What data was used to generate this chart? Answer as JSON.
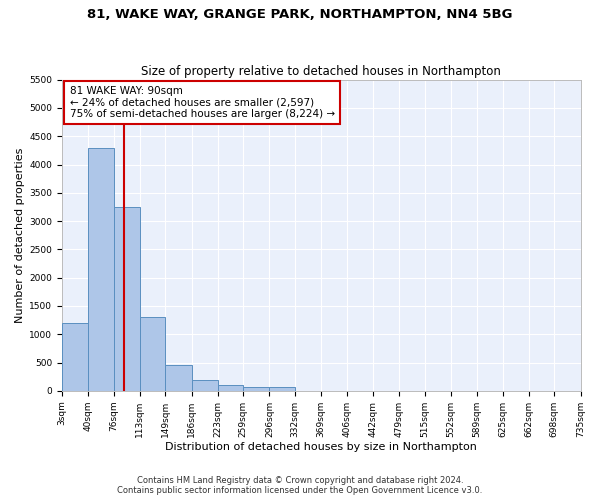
{
  "title_line1": "81, WAKE WAY, GRANGE PARK, NORTHAMPTON, NN4 5BG",
  "title_line2": "Size of property relative to detached houses in Northampton",
  "xlabel": "Distribution of detached houses by size in Northampton",
  "ylabel": "Number of detached properties",
  "footer_line1": "Contains HM Land Registry data © Crown copyright and database right 2024.",
  "footer_line2": "Contains public sector information licensed under the Open Government Licence v3.0.",
  "property_label": "81 WAKE WAY: 90sqm",
  "annotation_line1": "← 24% of detached houses are smaller (2,597)",
  "annotation_line2": "75% of semi-detached houses are larger (8,224) →",
  "property_size": 90,
  "bin_edges": [
    3,
    40,
    76,
    113,
    149,
    186,
    223,
    259,
    296,
    332,
    369,
    406,
    442,
    479,
    515,
    552,
    589,
    625,
    662,
    698,
    735
  ],
  "bar_heights": [
    1200,
    4300,
    3250,
    1300,
    450,
    200,
    100,
    70,
    70,
    0,
    0,
    0,
    0,
    0,
    0,
    0,
    0,
    0,
    0,
    0
  ],
  "bar_color": "#aec6e8",
  "bar_edge_color": "#5a8fc0",
  "vline_color": "#cc0000",
  "annotation_box_edge": "#cc0000",
  "background_color": "#ffffff",
  "plot_bg_color": "#eaf0fb",
  "ylim": [
    0,
    5500
  ],
  "yticks": [
    0,
    500,
    1000,
    1500,
    2000,
    2500,
    3000,
    3500,
    4000,
    4500,
    5000,
    5500
  ],
  "grid_color": "#ffffff",
  "title_fontsize": 9.5,
  "subtitle_fontsize": 8.5,
  "axis_label_fontsize": 8,
  "tick_fontsize": 6.5,
  "footer_fontsize": 6,
  "annotation_fontsize": 7.5
}
